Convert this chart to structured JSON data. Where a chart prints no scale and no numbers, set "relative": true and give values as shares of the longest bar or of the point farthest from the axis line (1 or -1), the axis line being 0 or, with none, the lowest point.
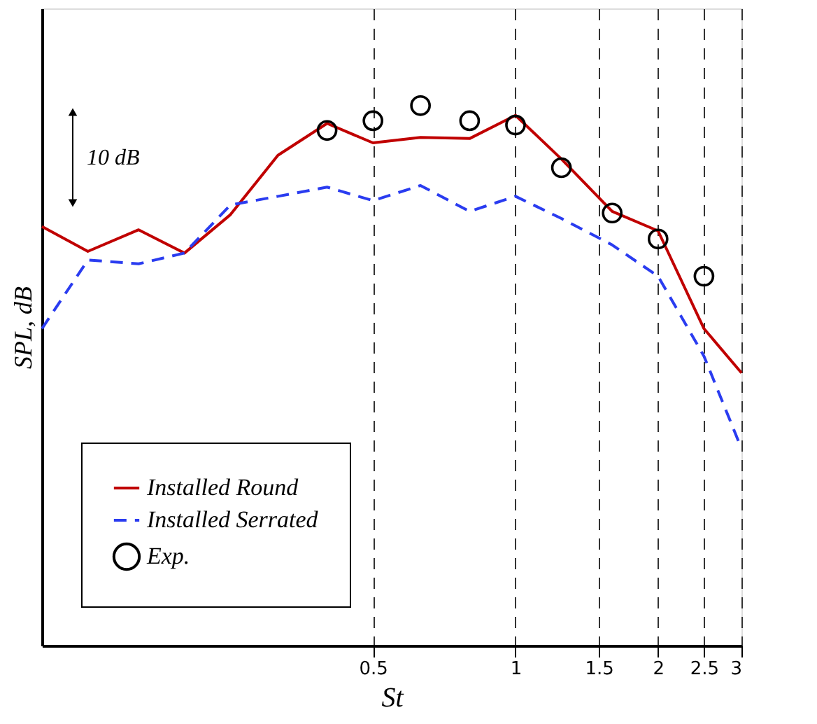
{
  "chart_data": {
    "type": "line",
    "xlabel": "St",
    "ylabel": "SPL, dB",
    "relative": true,
    "log": "x",
    "xlim": [
      0.1,
      3
    ],
    "xticks": [
      0.5,
      1,
      1.5,
      2,
      2.5,
      3
    ],
    "grid": "x",
    "legend": "bottom left",
    "annotations": [
      "10 dB"
    ],
    "x": [
      0.1,
      0.125,
      0.16,
      0.2,
      0.25,
      0.315,
      0.4,
      0.5,
      0.63,
      0.8,
      1,
      1.25,
      1.6,
      2,
      2.5,
      3
    ],
    "series": [
      {
        "name": "Installed Round",
        "line_style": "solid",
        "color": "#c00000",
        "values": [
          0.776,
          0.73,
          0.77,
          0.727,
          0.798,
          0.908,
          0.967,
          0.931,
          0.941,
          0.939,
          0.982,
          0.901,
          0.804,
          0.768,
          0.587,
          0.505
        ]
      },
      {
        "name": "Installed Serrated",
        "line_style": "dashed",
        "color": "#2a3cf0",
        "values": [
          0.587,
          0.714,
          0.707,
          0.727,
          0.816,
          0.832,
          0.849,
          0.824,
          0.852,
          0.804,
          0.832,
          0.791,
          0.742,
          0.684,
          0.536,
          0.365
        ]
      },
      {
        "name": "Exp.",
        "type": "scatter",
        "marker": "circle",
        "color": "#000000",
        "x": [
          0.4,
          0.5,
          0.63,
          0.8,
          1,
          1.25,
          1.6,
          2,
          2.5
        ],
        "values": [
          0.954,
          0.972,
          1.0,
          0.972,
          0.964,
          0.885,
          0.801,
          0.753,
          0.684
        ]
      }
    ]
  }
}
